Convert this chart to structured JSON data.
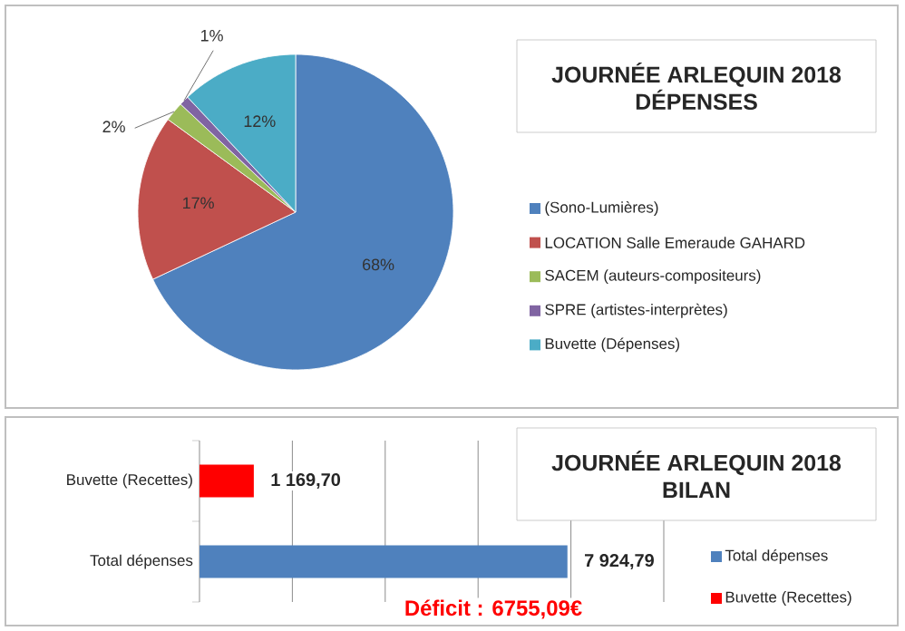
{
  "chart_data": [
    {
      "type": "pie",
      "title": "JOURNÉE ARLEQUIN 2018",
      "subtitle": "DÉPENSES",
      "categories": [
        "(Sono-Lumières)",
        "LOCATION Salle Emeraude GAHARD",
        "SACEM (auteurs-compositeurs)",
        "SPRE (artistes-interprètes)",
        "Buvette (Dépenses)"
      ],
      "values": [
        68,
        17,
        2,
        1,
        12
      ],
      "colors": [
        "#4f81bd",
        "#c0504d",
        "#9bbb59",
        "#8064a2",
        "#4bacc6"
      ],
      "value_labels": [
        "68%",
        "17%",
        "2%",
        "1%",
        "12%"
      ],
      "legend": "right"
    },
    {
      "type": "bar",
      "orientation": "horizontal",
      "title": "JOURNÉE ARLEQUIN 2018",
      "subtitle": "BILAN",
      "categories": [
        "Buvette (Recettes)",
        "Total dépenses"
      ],
      "series": [
        {
          "name": "Total dépenses",
          "color": "#4f81bd",
          "values": [
            null,
            7924.79
          ],
          "value_labels": [
            null,
            "7 924,79"
          ]
        },
        {
          "name": "Buvette (Recettes)",
          "color": "#ff0000",
          "values": [
            1169.7,
            null
          ],
          "value_labels": [
            "1 169,70",
            null
          ]
        }
      ],
      "xlim": [
        0,
        10000
      ],
      "xticks": [
        {
          "value": 0,
          "label": null
        },
        {
          "value": 2000,
          "label": null
        },
        {
          "value": 4000,
          "label": null
        },
        {
          "value": 6000,
          "label": null
        },
        {
          "value": 8000,
          "label": null
        },
        {
          "value": 10000,
          "label": null
        }
      ],
      "grid": "x",
      "tick_labels": "y",
      "legend": "right",
      "annotations": [
        "Déficit : 6755,09€"
      ]
    }
  ]
}
